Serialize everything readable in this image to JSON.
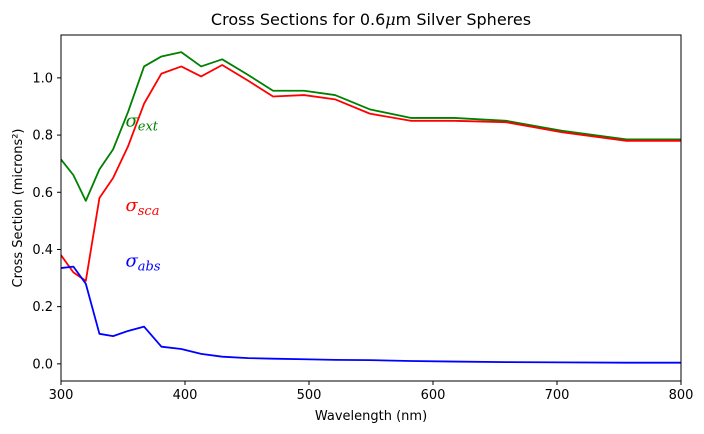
{
  "chart_data": {
    "type": "line",
    "title_prefix": "Cross Sections for 0.6",
    "title_mu": "μ",
    "title_suffix": "m Silver Spheres",
    "xlabel": "Wavelength (nm)",
    "ylabel": "Cross Section (microns²)",
    "xlim": [
      300,
      800
    ],
    "ylim": [
      -0.06,
      1.15
    ],
    "xticks": [
      300,
      400,
      500,
      600,
      700,
      800
    ],
    "xtick_labels": [
      "300",
      "400",
      "500",
      "600",
      "700",
      "800"
    ],
    "yticks": [
      0.0,
      0.2,
      0.4,
      0.6,
      0.8,
      1.0
    ],
    "ytick_labels": [
      "0.0",
      "0.2",
      "0.4",
      "0.6",
      "0.8",
      "1.0"
    ],
    "grid": false,
    "series": [
      {
        "key": "ext",
        "color": "#008000",
        "x": [
          300,
          310,
          320,
          331,
          342,
          354,
          367,
          381,
          397,
          413,
          430,
          451,
          471,
          496,
          521,
          549,
          582,
          617,
          659,
          704,
          756,
          800
        ],
        "y": [
          0.715,
          0.66,
          0.57,
          0.68,
          0.75,
          0.88,
          1.04,
          1.075,
          1.09,
          1.04,
          1.065,
          1.01,
          0.955,
          0.955,
          0.94,
          0.89,
          0.86,
          0.86,
          0.85,
          0.815,
          0.785,
          0.785
        ]
      },
      {
        "key": "sca",
        "color": "#ff0000",
        "x": [
          300,
          310,
          320,
          331,
          342,
          354,
          367,
          381,
          397,
          413,
          430,
          451,
          471,
          496,
          521,
          549,
          582,
          617,
          659,
          704,
          756,
          800
        ],
        "y": [
          0.38,
          0.32,
          0.29,
          0.58,
          0.65,
          0.76,
          0.91,
          1.015,
          1.04,
          1.005,
          1.045,
          0.99,
          0.935,
          0.94,
          0.925,
          0.875,
          0.85,
          0.85,
          0.845,
          0.81,
          0.78,
          0.78
        ]
      },
      {
        "key": "abs",
        "color": "#0000ff",
        "x": [
          300,
          310,
          320,
          331,
          342,
          354,
          367,
          381,
          397,
          413,
          430,
          451,
          471,
          496,
          521,
          549,
          582,
          617,
          659,
          704,
          756,
          800
        ],
        "y": [
          0.335,
          0.34,
          0.28,
          0.105,
          0.097,
          0.115,
          0.13,
          0.06,
          0.052,
          0.035,
          0.025,
          0.02,
          0.018,
          0.016,
          0.014,
          0.013,
          0.01,
          0.008,
          0.006,
          0.005,
          0.004,
          0.004
        ]
      }
    ],
    "annotations": [
      {
        "key": "ext",
        "symbol": "σ",
        "sub": "ext",
        "color": "#008000",
        "x": 352,
        "y": 0.83
      },
      {
        "key": "sca",
        "symbol": "σ",
        "sub": "sca",
        "color": "#ff0000",
        "x": 352,
        "y": 0.535
      },
      {
        "key": "abs",
        "symbol": "σ",
        "sub": "abs",
        "color": "#0000ff",
        "x": 352,
        "y": 0.34
      }
    ]
  }
}
